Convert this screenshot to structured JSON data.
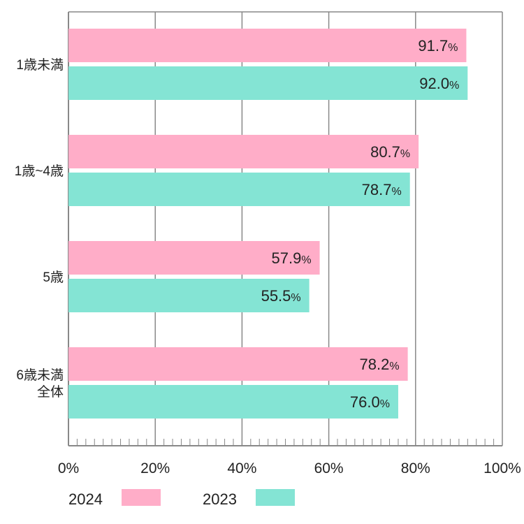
{
  "chart_data": {
    "type": "bar",
    "orientation": "horizontal",
    "categories": [
      [
        "1歳未満"
      ],
      [
        "1歳~4歳"
      ],
      [
        "5歳"
      ],
      [
        "6歳未満",
        "全体"
      ]
    ],
    "series": [
      {
        "name": "2024",
        "values": [
          91.7,
          80.7,
          57.9,
          78.2
        ],
        "color": "#FFADC8"
      },
      {
        "name": "2023",
        "values": [
          92.0,
          78.7,
          55.5,
          76.0
        ],
        "color": "#84E4D4"
      }
    ],
    "data_labels": [
      [
        "91.7",
        "80.7",
        "57.9",
        "78.2"
      ],
      [
        "92.0",
        "78.7",
        "55.5",
        "76.0"
      ]
    ],
    "value_unit": "%",
    "x_ticks": [
      "0%",
      "20%",
      "40%",
      "60%",
      "80%",
      "100%"
    ],
    "xlim": [
      0,
      100
    ],
    "grid": true,
    "legend_position": "bottom-left",
    "grid_color": "#888888",
    "text_color": "#222222"
  }
}
